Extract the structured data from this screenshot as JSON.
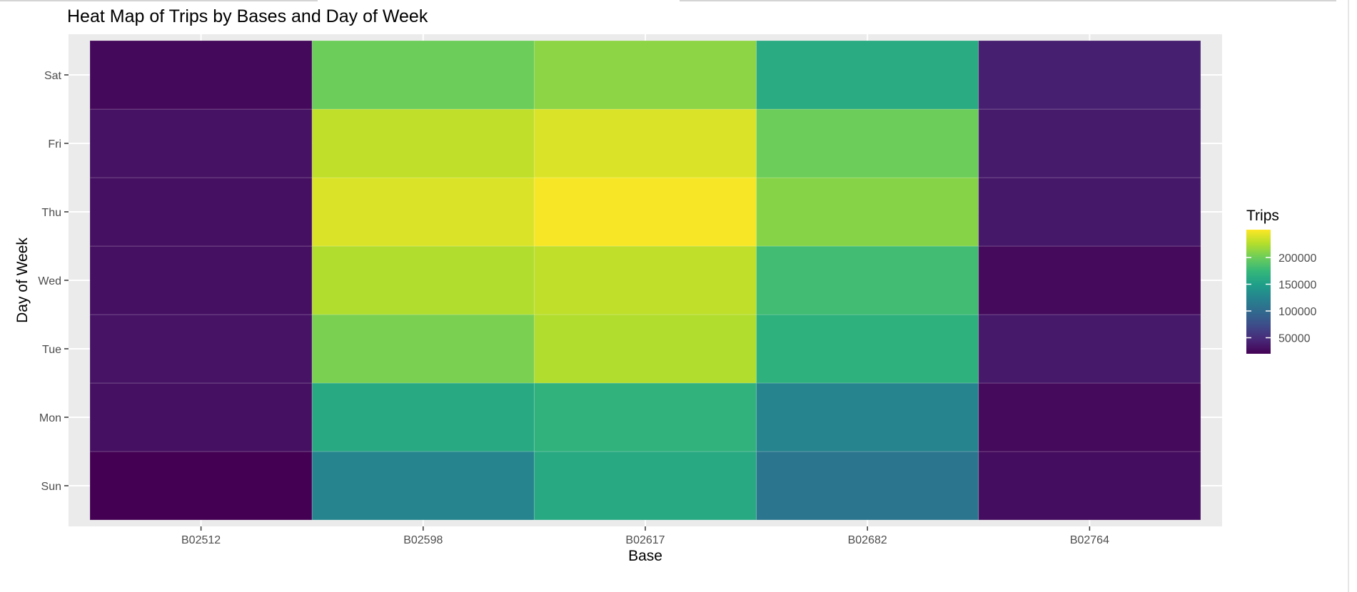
{
  "chart_data": {
    "type": "heatmap",
    "title": "Heat Map of Trips by Bases and Day of Week",
    "xlabel": "Base",
    "ylabel": "Day of Week",
    "x_categories": [
      "B02512",
      "B02598",
      "B02617",
      "B02682",
      "B02764"
    ],
    "y_categories": [
      "Sun",
      "Mon",
      "Tue",
      "Wed",
      "Thu",
      "Fri",
      "Sat"
    ],
    "values": [
      [
        20000,
        30000,
        32000,
        30000,
        30000,
        31000,
        25000
      ],
      [
        125000,
        160000,
        205000,
        225000,
        240000,
        230000,
        200000
      ],
      [
        160000,
        170000,
        225000,
        230000,
        250000,
        240000,
        212000
      ],
      [
        110000,
        125000,
        168000,
        180000,
        210000,
        200000,
        162000
      ],
      [
        28000,
        26000,
        36000,
        26000,
        35000,
        37000,
        40000
      ]
    ],
    "colorbar": {
      "title": "Trips",
      "min": 20000,
      "max": 252000,
      "ticks": [
        50000,
        100000,
        150000,
        200000
      ],
      "tick_labels": [
        "50000",
        "100000",
        "150000",
        "200000"
      ],
      "palette": [
        "#440154",
        "#482878",
        "#3E4A89",
        "#31688E",
        "#26828E",
        "#1F9E89",
        "#35B779",
        "#6DCD59",
        "#B4DE2C",
        "#FDE725"
      ]
    },
    "grid": true,
    "legend_position": "right",
    "panel_background": "#EBEBEB"
  }
}
